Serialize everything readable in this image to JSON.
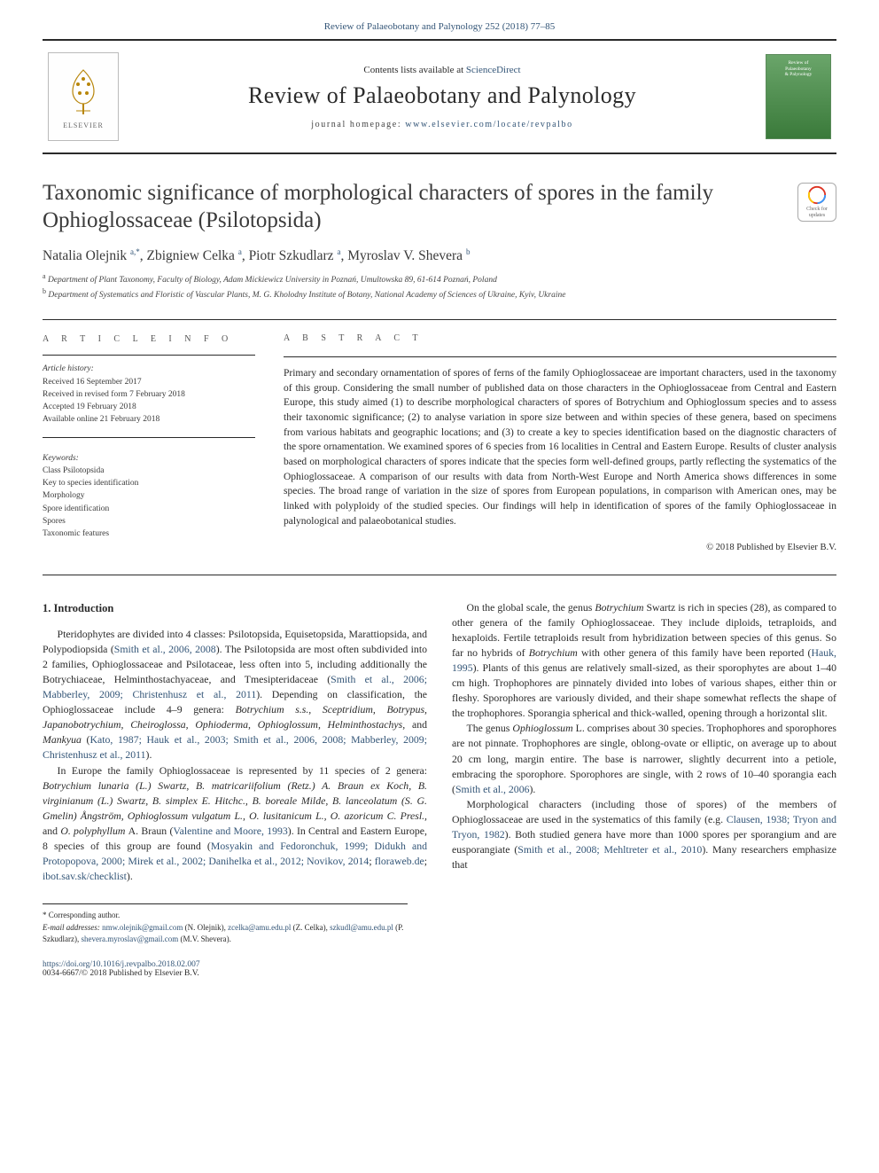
{
  "citation_line": "Review of Palaeobotany and Palynology 252 (2018) 77–85",
  "masthead": {
    "contents_prefix": "Contents lists available at ",
    "contents_link": "ScienceDirect",
    "journal_name": "Review of Palaeobotany and Palynology",
    "homepage_prefix": "journal homepage: ",
    "homepage_url": "www.elsevier.com/locate/revpalbo",
    "elsevier_label": "ELSEVIER",
    "cover_line1": "Review of",
    "cover_line2": "Palaeobotany",
    "cover_line3": "& Palynology"
  },
  "crossmark_label": "Check for updates",
  "title": "Taxonomic significance of morphological characters of spores in the family Ophioglossaceae (Psilotopsida)",
  "authors_html": "Natalia Olejnik <sup>a,*</sup>, Zbigniew Celka <sup>a</sup>, Piotr Szkudlarz <sup>a</sup>, Myroslav V. Shevera <sup>b</sup>",
  "affiliations": {
    "a": "Department of Plant Taxonomy, Faculty of Biology, Adam Mickiewicz University in Poznań, Umultowska 89, 61-614 Poznań, Poland",
    "b": "Department of Systematics and Floristic of Vascular Plants, M. G. Kholodny Institute of Botany, National Academy of Sciences of Ukraine, Kyiv, Ukraine"
  },
  "article_info_heading": "A R T I C L E   I N F O",
  "abstract_heading": "A B S T R A C T",
  "history": {
    "label": "Article history:",
    "received": "Received 16 September 2017",
    "revised": "Received in revised form 7 February 2018",
    "accepted": "Accepted 19 February 2018",
    "online": "Available online 21 February 2018"
  },
  "keywords": {
    "label": "Keywords:",
    "items": [
      "Class Psilotopsida",
      "Key to species identification",
      "Morphology",
      "Spore identification",
      "Spores",
      "Taxonomic features"
    ]
  },
  "abstract": "Primary and secondary ornamentation of spores of ferns of the family Ophioglossaceae are important characters, used in the taxonomy of this group. Considering the small number of published data on those characters in the Ophioglossaceae from Central and Eastern Europe, this study aimed (1) to describe morphological characters of spores of Botrychium and Ophioglossum species and to assess their taxonomic significance; (2) to analyse variation in spore size between and within species of these genera, based on specimens from various habitats and geographic locations; and (3) to create a key to species identification based on the diagnostic characters of the spore ornamentation. We examined spores of 6 species from 16 localities in Central and Eastern Europe. Results of cluster analysis based on morphological characters of spores indicate that the species form well-defined groups, partly reflecting the systematics of the Ophioglossaceae. A comparison of our results with data from North-West Europe and North America shows differences in some species. The broad range of variation in the size of spores from European populations, in comparison with American ones, may be linked with polyploidy of the studied species. Our findings will help in identification of spores of the family Ophioglossaceae in palynological and palaeobotanical studies.",
  "copyright": "© 2018 Published by Elsevier B.V.",
  "intro_heading": "1. Introduction",
  "para1_prefix": "Pteridophytes are divided into 4 classes: Psilotopsida, Equisetopsida, Marattiopsida, and Polypodiopsida (",
  "para1_ref1": "Smith et al., 2006, 2008",
  "para1_mid1": "). The Psilotopsida are most often subdivided into 2 families, Ophioglossaceae and Psilotaceae, less often into 5, including additionally the Botrychiaceae, Helminthostachyaceae, and Tmesipteridaceae (",
  "para1_ref2": "Smith et al., 2006; Mabberley, 2009; Christenhusz et al., 2011",
  "para1_mid2": "). Depending on classification, the Ophioglossaceae include 4–9 genera: ",
  "para1_genera": "Botrychium s.s., Sceptridium, Botrypus, Japanobotrychium, Cheiroglossa, Ophioderma, Ophioglossum, Helminthostachys, ",
  "para1_and": "and ",
  "para1_genus_last": "Mankyua",
  "para1_ref3a": " (",
  "para1_ref3": "Kato, 1987; Hauk et al., 2003; Smith et al., 2006, 2008; Mabberley, 2009; Christenhusz et al., 2011",
  "para1_end": ").",
  "para2_prefix": "In Europe the family Ophioglossaceae is represented by 11 species of 2 genera: ",
  "para2_species": "Botrychium lunaria (L.) Swartz, B. matricariifolium (Retz.) A. Braun ex Koch, B. virginianum (L.) Swartz, B. simplex E. Hitchc., B. boreale Milde, B. lanceolatum (S. G. Gmelin) Ångström, Ophioglossum vulgatum L., O. lusitanicum L., O. azoricum C. Presl., ",
  "para2_and": "and ",
  "para2_species_last": "O. polyphyllum ",
  "para2_after_last": "A. Braun (",
  "para2_ref1": "Valentine and Moore, 1993",
  "para2_mid": "). In Central and Eastern Europe, 8 species of this group are found (",
  "para2_ref2": "Mosyakin and Fedoronchuk, 1999; ",
  "para2_ref2b": "Didukh and Protopopova, 2000; Mirek et al., 2002; Danihelka et al., 2012; Novikov, 2014",
  "para2_sep": "; ",
  "para2_ref2c": "floraweb.de",
  "para2_sep2": "; ",
  "para2_ref2d": "ibot.sav.sk/checklist",
  "para2_end": ").",
  "para3_prefix": "On the global scale, the genus ",
  "para3_genus": "Botrychium ",
  "para3_mid1": "Swartz is rich in species (28), as compared to other genera of the family Ophioglossaceae. They include diploids, tetraploids, and hexaploids. Fertile tetraploids result from hybridization between species of this genus. So far no hybrids of ",
  "para3_genus2": "Botrychium ",
  "para3_mid2": "with other genera of this family have been reported (",
  "para3_ref": "Hauk, 1995",
  "para3_end": "). Plants of this genus are relatively small-sized, as their sporophytes are about 1–40 cm high. Trophophores are pinnately divided into lobes of various shapes, either thin or fleshy. Sporophores are variously divided, and their shape somewhat reflects the shape of the trophophores. Sporangia spherical and thick-walled, opening through a horizontal slit.",
  "para4_prefix": "The genus ",
  "para4_genus": "Ophioglossum ",
  "para4_mid": "L. comprises about 30 species. Trophophores and sporophores are not pinnate. Trophophores are single, oblong-ovate or elliptic, on average up to about 20 cm long, margin entire. The base is narrower, slightly decurrent into a petiole, embracing the sporophore. Sporophores are single, with 2 rows of 10–40 sporangia each (",
  "para4_ref": "Smith et al., 2006",
  "para4_end": ").",
  "para5_prefix": "Morphological characters (including those of spores) of the members of Ophioglossaceae are used in the systematics of this family (e.g. ",
  "para5_ref1": "Clausen, 1938; Tryon and Tryon, 1982",
  "para5_mid": "). Both studied genera have more than 1000 spores per sporangium and are eusporangiate (",
  "para5_ref2": "Smith et al., 2008; Mehltreter et al., 2010",
  "para5_end": "). Many researchers emphasize that",
  "footnotes": {
    "corr": "* Corresponding author.",
    "email_label": "E-mail addresses: ",
    "e1": "nmw.olejnik@gmail.com",
    "n1": " (N. Olejnik), ",
    "e2": "zcelka@amu.edu.pl",
    "n2": " (Z. Celka), ",
    "e3": "szkudl@amu.edu.pl",
    "n3": " (P. Szkudlarz), ",
    "e4": "shevera.myroslav@gmail.com",
    "n4": " (M.V. Shevera)."
  },
  "doi": "https://doi.org/10.1016/j.revpalbo.2018.02.007",
  "issn_line": "0034-6667/© 2018 Published by Elsevier B.V.",
  "colors": {
    "link": "#3366aa",
    "text": "#2a2a2a",
    "rule": "#2a2a2a"
  }
}
